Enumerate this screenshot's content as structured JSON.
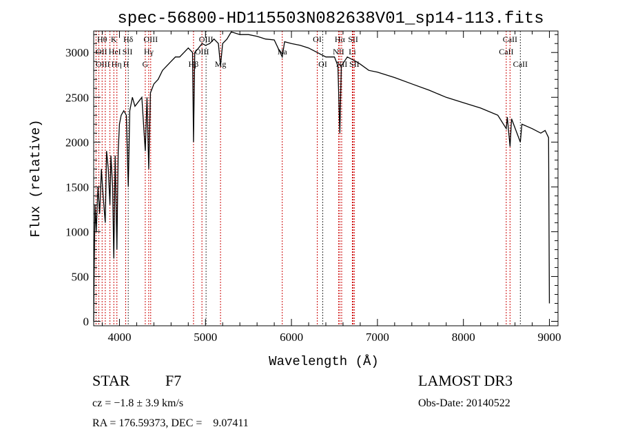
{
  "chart_data": {
    "type": "line",
    "title": "spec-56800-HD115503N082638V01_sp14-113.fits",
    "xlabel": "Wavelength (Å)",
    "ylabel": "Flux (relative)",
    "xlim": [
      3700,
      9100
    ],
    "ylim": [
      -50,
      3240
    ],
    "xticks": [
      4000,
      5000,
      6000,
      7000,
      8000,
      9000
    ],
    "xtick_labels": [
      "4000",
      "5000",
      "6000",
      "7000",
      "8000",
      "9000"
    ],
    "yticks": [
      0,
      500,
      1000,
      1500,
      2000,
      2500,
      3000
    ],
    "ytick_labels": [
      "0",
      "500",
      "1000",
      "1500",
      "2000",
      "2500",
      "3000"
    ],
    "grid": false,
    "series": [
      {
        "name": "spectrum",
        "color": "#000000",
        "x": [
          3700,
          3705,
          3715,
          3730,
          3750,
          3770,
          3790,
          3810,
          3835,
          3850,
          3870,
          3889,
          3900,
          3920,
          3934,
          3950,
          3970,
          3985,
          4000,
          4020,
          4050,
          4080,
          4102,
          4120,
          4150,
          4180,
          4220,
          4260,
          4300,
          4320,
          4340,
          4360,
          4400,
          4450,
          4500,
          4550,
          4600,
          4650,
          4700,
          4750,
          4800,
          4850,
          4861,
          4875,
          4920,
          4960,
          5000,
          5050,
          5100,
          5150,
          5175,
          5200,
          5250,
          5300,
          5400,
          5500,
          5600,
          5700,
          5800,
          5893,
          5920,
          6000,
          6100,
          6200,
          6300,
          6400,
          6500,
          6540,
          6563,
          6580,
          6650,
          6750,
          6800,
          6900,
          7000,
          7200,
          7400,
          7600,
          7800,
          8000,
          8200,
          8400,
          8498,
          8510,
          8542,
          8560,
          8662,
          8680,
          8800,
          8900,
          8950,
          8990,
          9000
        ],
        "y": [
          0,
          500,
          1300,
          1000,
          1500,
          1200,
          1700,
          1400,
          1100,
          1900,
          1700,
          1300,
          1850,
          1500,
          700,
          1850,
          800,
          1900,
          2200,
          2300,
          2350,
          2300,
          1500,
          2350,
          2500,
          2400,
          2450,
          2500,
          1900,
          2500,
          1700,
          2550,
          2650,
          2700,
          2800,
          2850,
          2900,
          2950,
          2950,
          3000,
          3050,
          3000,
          2000,
          3000,
          3050,
          3100,
          3080,
          3100,
          3150,
          3100,
          2850,
          3100,
          3150,
          3230,
          3200,
          3200,
          3180,
          3150,
          3140,
          2950,
          3120,
          3100,
          3080,
          3050,
          3000,
          2950,
          2950,
          2850,
          2100,
          2850,
          2950,
          2900,
          2870,
          2800,
          2780,
          2720,
          2650,
          2580,
          2500,
          2440,
          2380,
          2300,
          2150,
          2280,
          1950,
          2260,
          2000,
          2200,
          2150,
          2100,
          2130,
          2050,
          200
        ]
      }
    ],
    "line_markers": [
      {
        "label": "OII",
        "wave": 3727,
        "row": 2,
        "color": "#cc0000"
      },
      {
        "label": "OIII",
        "wave": 3760,
        "row": 3,
        "color": "#cc0000"
      },
      {
        "label": "Hθ",
        "wave": 3798,
        "row": 1,
        "color": "#cc0000"
      },
      {
        "label": "Hη",
        "wave": 3835,
        "row": 3,
        "color": "#cc0000"
      },
      {
        "label": "HeI",
        "wave": 3889,
        "row": 2,
        "color": "#cc0000"
      },
      {
        "label": "K",
        "wave": 3934,
        "row": 1,
        "color": "#cc0000"
      },
      {
        "label": "H",
        "wave": 3970,
        "row": 3,
        "color": "#cc0000"
      },
      {
        "label": "SII",
        "wave": 4072,
        "row": 2,
        "color": "#cc0000"
      },
      {
        "label": "Hδ",
        "wave": 4102,
        "row": 1,
        "color": "#333333"
      },
      {
        "label": "G",
        "wave": 4300,
        "row": 3,
        "color": "#cc0000"
      },
      {
        "label": "Hγ",
        "wave": 4340,
        "row": 2,
        "color": "#cc0000"
      },
      {
        "label": "OIII",
        "wave": 4363,
        "row": 1,
        "color": "#cc0000"
      },
      {
        "label": "Hβ",
        "wave": 4861,
        "row": 3,
        "color": "#cc0000"
      },
      {
        "label": "OIII",
        "wave": 4959,
        "row": 2,
        "color": "#cc0000"
      },
      {
        "label": "OIII",
        "wave": 5007,
        "row": 1,
        "color": "#333333"
      },
      {
        "label": "Mg",
        "wave": 5175,
        "row": 3,
        "color": "#cc0000"
      },
      {
        "label": "Na",
        "wave": 5893,
        "row": 2,
        "color": "#cc0000"
      },
      {
        "label": "OI",
        "wave": 6300,
        "row": 1,
        "color": "#cc0000"
      },
      {
        "label": "OI",
        "wave": 6364,
        "row": 3,
        "color": "#333333"
      },
      {
        "label": "NII",
        "wave": 6548,
        "row": 2,
        "color": "#cc0000"
      },
      {
        "label": "Hα",
        "wave": 6563,
        "row": 1,
        "color": "#cc0000"
      },
      {
        "label": "NII",
        "wave": 6584,
        "row": 3,
        "color": "#cc0000"
      },
      {
        "label": "Li",
        "wave": 6708,
        "row": 2,
        "color": "#cc0000"
      },
      {
        "label": "SII",
        "wave": 6717,
        "row": 1,
        "color": "#cc0000"
      },
      {
        "label": "SII",
        "wave": 6731,
        "row": 3,
        "color": "#cc0000"
      },
      {
        "label": "CaII",
        "wave": 8498,
        "row": 2,
        "color": "#cc0000"
      },
      {
        "label": "CaII",
        "wave": 8542,
        "row": 1,
        "color": "#cc0000"
      },
      {
        "label": "CaII",
        "wave": 8662,
        "row": 3,
        "color": "#333333"
      }
    ]
  },
  "info": {
    "class": "STAR",
    "subclass": "F7",
    "survey": "LAMOST DR3",
    "cz": "cz = −1.8 ± 3.9 km/s",
    "obs_date": "Obs-Date: 20140522",
    "radec": "RA = 176.59373, DEC =    9.07411"
  }
}
